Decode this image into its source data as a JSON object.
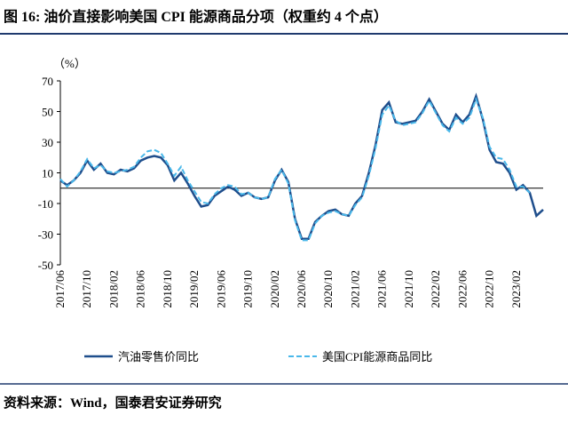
{
  "chart_data": {
    "type": "line",
    "title": "图 16: 油价直接影响美国 CPI 能源商品分项（权重约 4 个点）",
    "y_label": "（%）",
    "source": "资料来源：Wind，国泰君安证券研究",
    "categories": [
      "2017/06",
      null,
      null,
      null,
      "2017/10",
      null,
      null,
      null,
      "2018/02",
      null,
      null,
      null,
      "2018/06",
      null,
      null,
      null,
      "2018/10",
      null,
      null,
      null,
      "2019/02",
      null,
      null,
      null,
      "2019/06",
      null,
      null,
      null,
      "2019/10",
      null,
      null,
      null,
      "2020/02",
      null,
      null,
      null,
      "2020/06",
      null,
      null,
      null,
      "2020/10",
      null,
      null,
      null,
      "2021/02",
      null,
      null,
      null,
      "2021/06",
      null,
      null,
      null,
      "2021/10",
      null,
      null,
      null,
      "2022/02",
      null,
      null,
      null,
      "2022/06",
      null,
      null,
      null,
      "2022/10",
      null,
      null,
      null,
      "2023/02",
      null,
      null,
      null,
      null
    ],
    "series": [
      {
        "name": "汽油零售价同比",
        "color": "#1f4e8c",
        "dash": false,
        "values": [
          5,
          2,
          5,
          10,
          18,
          12,
          16,
          10,
          9,
          12,
          11,
          13,
          18,
          20,
          21,
          20,
          15,
          5,
          10,
          3,
          -5,
          -12,
          -11,
          -5,
          -2,
          1,
          -1,
          -5,
          -3,
          -6,
          -7,
          -6,
          5,
          12,
          4,
          -20,
          -33,
          -33,
          -22,
          -18,
          -15,
          -14,
          -17,
          -18,
          -10,
          -5,
          10,
          28,
          51,
          56,
          43,
          42,
          43,
          44,
          50,
          58,
          50,
          42,
          38,
          48,
          43,
          48,
          60,
          45,
          25,
          17,
          16,
          10,
          -1,
          2,
          -3,
          -18,
          -14
        ]
      },
      {
        "name": "美国CPI能源商品同比",
        "color": "#4ab8ea",
        "dash": true,
        "values": [
          6,
          1,
          5,
          11,
          19,
          13,
          15,
          11,
          10,
          11,
          12,
          14,
          20,
          24,
          25,
          23,
          16,
          8,
          14,
          5,
          -2,
          -9,
          -10,
          -4,
          0,
          2,
          1,
          -4,
          -3,
          -6,
          -7,
          -6,
          6,
          12,
          3,
          -21,
          -34,
          -34,
          -23,
          -18,
          -16,
          -15,
          -17,
          -18,
          -11,
          -6,
          8,
          26,
          48,
          54,
          44,
          41,
          42,
          43,
          49,
          57,
          49,
          41,
          37,
          46,
          42,
          46,
          58,
          46,
          27,
          20,
          19,
          12,
          1,
          1,
          -3,
          null,
          null
        ]
      }
    ],
    "ylim": [
      -50,
      70
    ],
    "yticks": [
      -50,
      -30,
      -10,
      10,
      30,
      50,
      70
    ]
  }
}
